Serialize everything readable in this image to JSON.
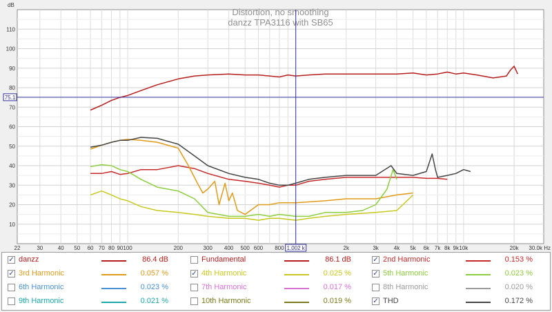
{
  "chart_data": {
    "type": "line",
    "title": "Distortion, no smoothing",
    "subtitle": "danzz TPA3116 with SB65",
    "y_unit": "dB",
    "x_unit": "Hz",
    "xscale": "log",
    "xlim": [
      22,
      30000
    ],
    "ylim": [
      0,
      120
    ],
    "grid": true,
    "x_ticks": [
      {
        "v": 22,
        "label": "22"
      },
      {
        "v": 30,
        "label": "30"
      },
      {
        "v": 40,
        "label": "40"
      },
      {
        "v": 50,
        "label": "50"
      },
      {
        "v": 60,
        "label": "60"
      },
      {
        "v": 70,
        "label": "70"
      },
      {
        "v": 80,
        "label": "80"
      },
      {
        "v": 90,
        "label": "90"
      },
      {
        "v": 100,
        "label": "100"
      },
      {
        "v": 200,
        "label": "200"
      },
      {
        "v": 300,
        "label": "300"
      },
      {
        "v": 400,
        "label": "400"
      },
      {
        "v": 500,
        "label": "500"
      },
      {
        "v": 600,
        "label": "600"
      },
      {
        "v": 800,
        "label": "800"
      },
      {
        "v": 2000,
        "label": "2k"
      },
      {
        "v": 3000,
        "label": "3k"
      },
      {
        "v": 4000,
        "label": "4k"
      },
      {
        "v": 5000,
        "label": "5k"
      },
      {
        "v": 6000,
        "label": "6k"
      },
      {
        "v": 7000,
        "label": "7k"
      },
      {
        "v": 8000,
        "label": "8k"
      },
      {
        "v": 9000,
        "label": "9k"
      },
      {
        "v": 10000,
        "label": "10k"
      },
      {
        "v": 20000,
        "label": "20k"
      },
      {
        "v": 30000,
        "label": "30.0k Hz"
      }
    ],
    "y_ticks": [
      {
        "v": 10,
        "label": "10"
      },
      {
        "v": 20,
        "label": "20"
      },
      {
        "v": 30,
        "label": "30"
      },
      {
        "v": 40,
        "label": "40"
      },
      {
        "v": 50,
        "label": "50"
      },
      {
        "v": 60,
        "label": "60"
      },
      {
        "v": 70,
        "label": "70"
      },
      {
        "v": 80,
        "label": "80"
      },
      {
        "v": 90,
        "label": "90"
      },
      {
        "v": 100,
        "label": "100"
      },
      {
        "v": 110,
        "label": "110"
      }
    ],
    "cursor": {
      "x": 1002,
      "y": 75.1,
      "x_label": "1.002 k",
      "y_label": "75.1"
    },
    "series": [
      {
        "name": "danzz",
        "color": "#b71c1c",
        "x": [
          60,
          70,
          80,
          90,
          100,
          120,
          150,
          200,
          250,
          300,
          400,
          500,
          600,
          700,
          800,
          900,
          1000,
          1200,
          1500,
          2000,
          3000,
          4000,
          5000,
          6000,
          7000,
          8000,
          9000,
          10000,
          12000,
          15000,
          18000,
          19000,
          20000,
          21000
        ],
        "y": [
          68.5,
          71,
          73.5,
          75,
          76,
          78.5,
          81.5,
          84.5,
          86,
          86.5,
          87,
          86.5,
          86.5,
          86,
          85.5,
          86.5,
          86,
          86.5,
          87,
          87,
          87,
          87,
          87.5,
          86.5,
          87,
          88,
          87,
          87.5,
          86.5,
          85,
          86,
          89,
          91,
          87
        ]
      },
      {
        "name": "2nd Harmonic",
        "color": "#c62828",
        "x": [
          60,
          70,
          80,
          90,
          100,
          120,
          150,
          200,
          250,
          300,
          400,
          500,
          600,
          700,
          800,
          900,
          1000,
          1200,
          1500,
          2000,
          3000,
          4000,
          5000,
          6000,
          7000,
          8000
        ],
        "y": [
          36,
          36,
          37,
          35.5,
          36,
          38,
          38,
          40,
          38.5,
          36,
          33,
          32,
          31,
          30,
          29,
          30,
          30,
          32,
          33,
          34,
          34,
          34,
          34,
          33.5,
          33.5,
          33
        ]
      },
      {
        "name": "3rd Harmonic",
        "color": "#e09a18",
        "x": [
          60,
          70,
          80,
          90,
          100,
          120,
          150,
          200,
          230,
          260,
          280,
          300,
          330,
          350,
          380,
          400,
          420,
          450,
          500,
          600,
          700,
          800,
          1000,
          1500,
          2000,
          3000,
          4000,
          5000
        ],
        "y": [
          48.5,
          50.5,
          52,
          53,
          53.5,
          53,
          52,
          49,
          40,
          31,
          26,
          28,
          32,
          20,
          31,
          22,
          26,
          17,
          15,
          20,
          20,
          21,
          21,
          22,
          23,
          23,
          25,
          26
        ]
      },
      {
        "name": "4th Harmonic",
        "color": "#c8c81e",
        "x": [
          60,
          70,
          80,
          90,
          100,
          120,
          150,
          200,
          250,
          300,
          400,
          500,
          600,
          700,
          800,
          1000,
          1200,
          1500,
          2000,
          3000,
          4000,
          5000
        ],
        "y": [
          25,
          27,
          25,
          23,
          22,
          19,
          17,
          16,
          15,
          14,
          13,
          13,
          12,
          13,
          13,
          12,
          13,
          14,
          15,
          16,
          17,
          25
        ]
      },
      {
        "name": "5th Harmonic",
        "color": "#8ccd3c",
        "x": [
          60,
          70,
          80,
          90,
          100,
          120,
          150,
          200,
          250,
          300,
          400,
          500,
          600,
          700,
          800,
          1000,
          1200,
          1500,
          2000,
          2500,
          3000,
          3500,
          3800,
          4000
        ],
        "y": [
          39.5,
          40.5,
          40,
          38,
          37,
          33,
          29,
          27,
          23,
          16,
          14,
          14,
          15,
          14,
          15,
          14,
          14,
          16,
          16,
          17,
          20,
          28,
          38,
          33
        ]
      },
      {
        "name": "THD",
        "color": "#444444",
        "x": [
          60,
          70,
          80,
          90,
          100,
          120,
          150,
          200,
          250,
          300,
          400,
          500,
          600,
          700,
          800,
          900,
          1000,
          1200,
          1500,
          2000,
          3000,
          3700,
          4000,
          5000,
          6000,
          6500,
          6800,
          7000,
          8000,
          9000,
          10000,
          11000
        ],
        "y": [
          49.5,
          50.5,
          52,
          53,
          53,
          54.5,
          54,
          51,
          45,
          40,
          36,
          34,
          33,
          31,
          30,
          30,
          31,
          33,
          34,
          35,
          35,
          40,
          36,
          35,
          37,
          46,
          38,
          34,
          35,
          36,
          38,
          37
        ]
      }
    ]
  },
  "legend": {
    "rows": [
      [
        {
          "checked": true,
          "name": "danzz",
          "color": "#b71c1c",
          "value": "86.4 dB"
        },
        {
          "checked": false,
          "name": "Fundamental",
          "color": "#b71c1c",
          "value": "86.1 dB"
        },
        {
          "checked": true,
          "name": "2nd Harmonic",
          "color": "#c62828",
          "value": "0.153 %"
        }
      ],
      [
        {
          "checked": true,
          "name": "3rd Harmonic",
          "color": "#e09a18",
          "value": "0.057 %"
        },
        {
          "checked": true,
          "name": "4th Harmonic",
          "color": "#c8c81e",
          "value": "0.025 %"
        },
        {
          "checked": true,
          "name": "5th Harmonic",
          "color": "#8ccd3c",
          "value": "0.023 %"
        }
      ],
      [
        {
          "checked": false,
          "name": "6th Harmonic",
          "color": "#4a90d9",
          "value": "0.023 %"
        },
        {
          "checked": false,
          "name": "7th Harmonic",
          "color": "#d870d8",
          "value": "0.017 %"
        },
        {
          "checked": false,
          "name": "8th Harmonic",
          "color": "#9a9a9a",
          "value": "0.020 %"
        }
      ],
      [
        {
          "checked": false,
          "name": "9th Harmonic",
          "color": "#1aa8a8",
          "value": "0.021 %"
        },
        {
          "checked": false,
          "name": "10th Harmonic",
          "color": "#7a7a1a",
          "value": "0.019 %"
        },
        {
          "checked": true,
          "name": "THD",
          "color": "#444444",
          "value": "0.172 %"
        }
      ]
    ]
  }
}
